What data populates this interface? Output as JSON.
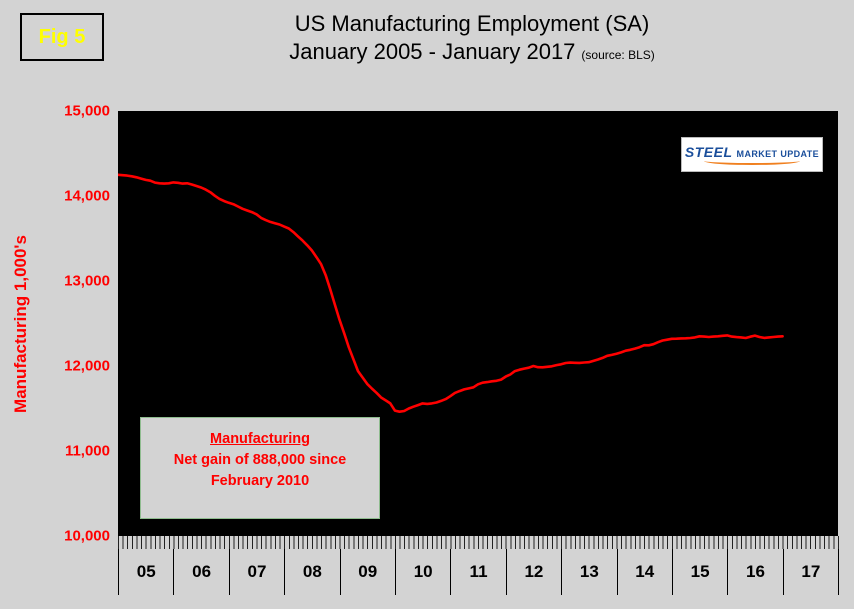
{
  "fig_label": "Fig 5",
  "title": {
    "line1": "US Manufacturing Employment (SA)",
    "line2": "January 2005 - January 2017",
    "source": "(source: BLS)"
  },
  "y_axis": {
    "title": "Manufacturing  1,000's",
    "ticks": [
      "15,000",
      "14,000",
      "13,000",
      "12,000",
      "11,000",
      "10,000"
    ]
  },
  "x_axis": {
    "labels": [
      "05",
      "06",
      "07",
      "08",
      "09",
      "10",
      "11",
      "12",
      "13",
      "14",
      "15",
      "16",
      "17"
    ]
  },
  "annotation": {
    "heading": "Manufacturing",
    "line2": "Net gain of 888,000 since",
    "line3": "February 2010"
  },
  "logo": {
    "steel": "STEEL",
    "rest": "MARKET UPDATE"
  },
  "colors": {
    "line": "#ff0000",
    "plot_background": "#000000",
    "page_background": "#d3d3d3",
    "axis_label": "#ff0000",
    "fig_label": "#ffff00",
    "logo_blue": "#1a4e9b",
    "logo_orange": "#f08020"
  },
  "chart_data": {
    "type": "line",
    "title": "US Manufacturing Employment (SA)",
    "subtitle": "January 2005 - January 2017",
    "source": "BLS",
    "series_name": "US Manufacturing Employment (thousands, seasonally adjusted)",
    "frequency": "monthly",
    "x_start": "2005-01",
    "x_end": "2017-01",
    "ylabel": "Manufacturing 1,000's",
    "ylim": [
      10000,
      15000
    ],
    "y_ticks": [
      10000,
      11000,
      12000,
      13000,
      14000,
      15000
    ],
    "x_tick_labels": [
      "05",
      "06",
      "07",
      "08",
      "09",
      "10",
      "11",
      "12",
      "13",
      "14",
      "15",
      "16",
      "17"
    ],
    "x_slots_months": 156,
    "grid": false,
    "legend": false,
    "annotation": "Manufacturing: Net gain of 888,000 since February 2010",
    "values": [
      14250,
      14245,
      14240,
      14232,
      14220,
      14205,
      14190,
      14180,
      14158,
      14150,
      14146,
      14150,
      14160,
      14155,
      14146,
      14150,
      14135,
      14118,
      14100,
      14075,
      14045,
      14002,
      13966,
      13940,
      13920,
      13903,
      13876,
      13850,
      13830,
      13810,
      13785,
      13742,
      13716,
      13695,
      13680,
      13665,
      13640,
      13618,
      13575,
      13525,
      13475,
      13420,
      13360,
      13280,
      13198,
      13068,
      12900,
      12720,
      12545,
      12385,
      12220,
      12080,
      11940,
      11865,
      11790,
      11735,
      11685,
      11630,
      11595,
      11560,
      11475,
      11462,
      11471,
      11500,
      11521,
      11540,
      11560,
      11554,
      11560,
      11571,
      11590,
      11611,
      11645,
      11684,
      11705,
      11725,
      11736,
      11750,
      11785,
      11804,
      11810,
      11820,
      11826,
      11840,
      11875,
      11900,
      11940,
      11956,
      11970,
      11980,
      12000,
      11986,
      11985,
      11991,
      11996,
      12010,
      12020,
      12035,
      12040,
      12038,
      12036,
      12041,
      12045,
      12060,
      12076,
      12095,
      12120,
      12130,
      12145,
      12160,
      12180,
      12191,
      12205,
      12221,
      12245,
      12244,
      12256,
      12280,
      12300,
      12310,
      12320,
      12321,
      12325,
      12326,
      12330,
      12336,
      12350,
      12346,
      12341,
      12346,
      12350,
      12355,
      12360,
      12346,
      12340,
      12336,
      12330,
      12345,
      12358,
      12341,
      12331,
      12336,
      12341,
      12346,
      12350
    ]
  }
}
